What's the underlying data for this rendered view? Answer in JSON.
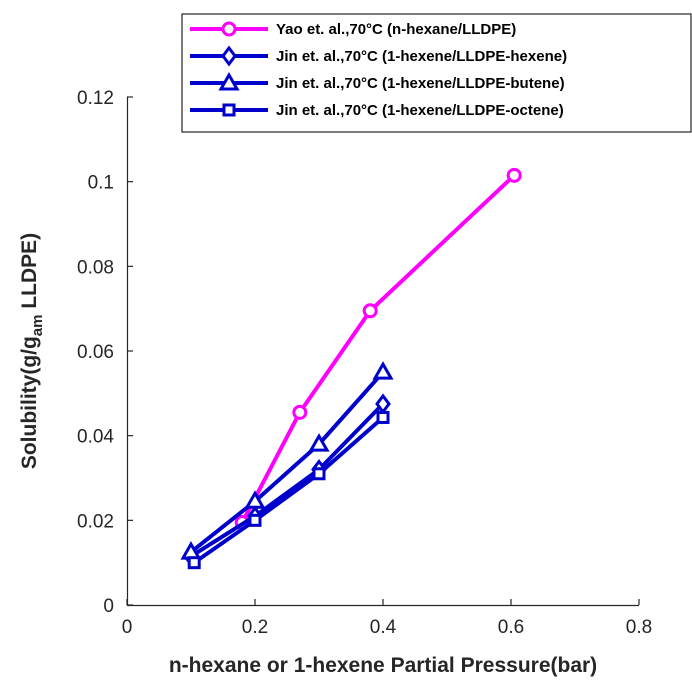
{
  "chart_data": {
    "type": "line",
    "xlabel": "n-hexane or 1-hexene Partial Pressure(bar)",
    "ylabel": {
      "main": "Solubility(g/g",
      "subscript": "am",
      "suffix": " LLDPE)"
    },
    "xlim": [
      0,
      0.8
    ],
    "ylim": [
      0,
      0.12
    ],
    "x_ticks": [
      0,
      0.2,
      0.4,
      0.6,
      0.8
    ],
    "x_tick_labels": [
      "0",
      "0.2",
      "0.4",
      "0.6",
      "0.8"
    ],
    "y_ticks": [
      0,
      0.02,
      0.04,
      0.06,
      0.08,
      0.1,
      0.12
    ],
    "y_tick_labels": [
      "0",
      "0.02",
      "0.04",
      "0.06",
      "0.08",
      "0.1",
      "0.12"
    ],
    "grid": false,
    "legend_position": "top-right",
    "series": [
      {
        "name": "Yao et. al.,70°C (n-hexane/LLDPE)",
        "color": "#ff00ff",
        "marker": "circle",
        "x": [
          0.18,
          0.27,
          0.38,
          0.605
        ],
        "y": [
          0.0195,
          0.0455,
          0.0695,
          0.1015
        ]
      },
      {
        "name": "Jin et. al.,70°C (1-hexene/LLDPE-hexene)",
        "color": "#0000cc",
        "marker": "diamond",
        "x": [
          0.1,
          0.2,
          0.3,
          0.4
        ],
        "y": [
          0.0115,
          0.021,
          0.032,
          0.0475
        ]
      },
      {
        "name": "Jin et. al.,70°C (1-hexene/LLDPE-butene)",
        "color": "#0000cc",
        "marker": "triangle",
        "x": [
          0.1,
          0.2,
          0.3,
          0.4
        ],
        "y": [
          0.0125,
          0.0245,
          0.038,
          0.055
        ]
      },
      {
        "name": "Jin et. al.,70°C (1-hexene/LLDPE-octene)",
        "color": "#0000cc",
        "marker": "square",
        "x": [
          0.105,
          0.2,
          0.3,
          0.4
        ],
        "y": [
          0.01,
          0.02,
          0.031,
          0.0443
        ]
      }
    ]
  }
}
